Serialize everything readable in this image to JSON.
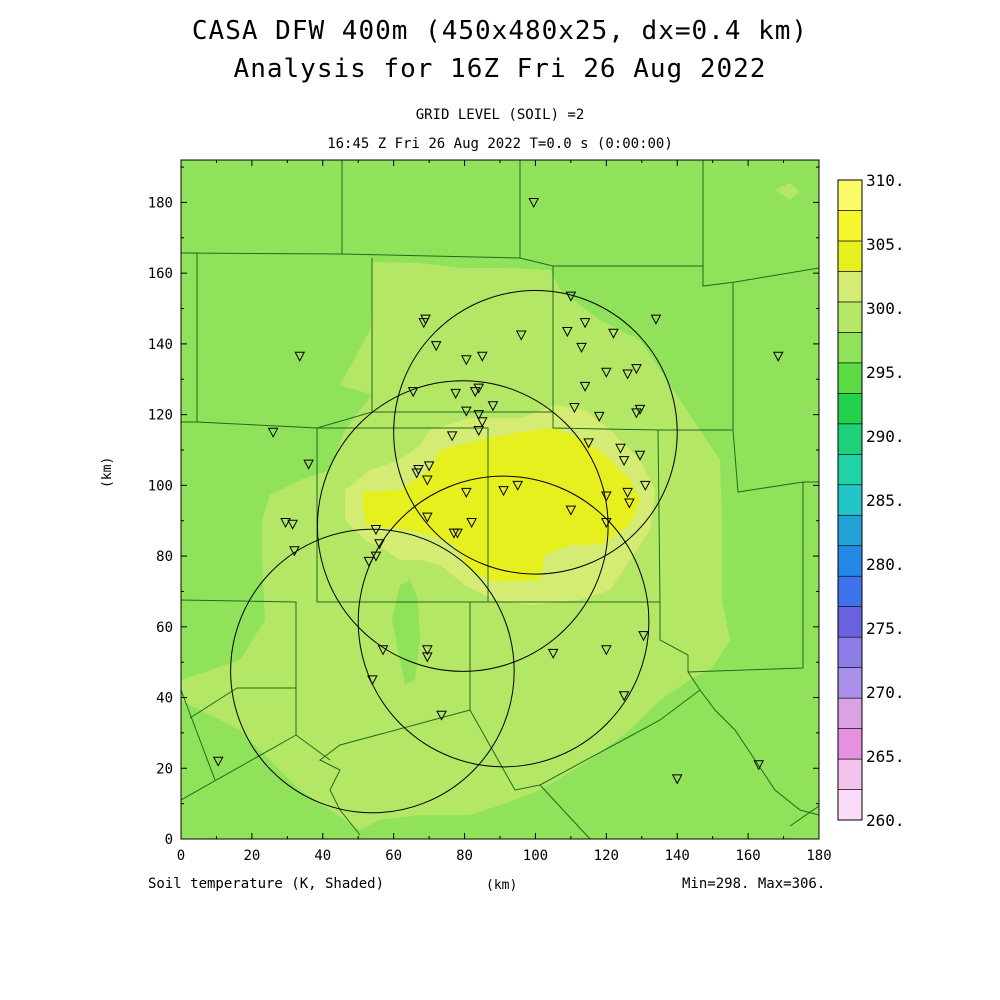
{
  "chart_data": {
    "type": "heatmap",
    "title": "CASA DFW 400m (450x480x25, dx=0.4 km)",
    "subtitle": "Analysis for 16Z Fri 26 Aug 2022",
    "level_label": "GRID LEVEL (SOIL) =2",
    "time_label": "16:45 Z Fri 26 Aug 2022   T=0.0 s (0:00:00)",
    "variable_label": "Soil temperature (K, Shaded)",
    "xlabel": "(km)",
    "ylabel": "(km)",
    "minmax_label": "Min=298. Max=306.",
    "xlim": [
      0,
      180
    ],
    "ylim": [
      0,
      192
    ],
    "x_ticks": [
      "0",
      "20",
      "40",
      "60",
      "80",
      "100",
      "120",
      "140",
      "160",
      "180"
    ],
    "y_ticks": [
      "0",
      "20",
      "40",
      "60",
      "80",
      "100",
      "120",
      "140",
      "160",
      "180"
    ],
    "colorbar": {
      "labels": [
        "260.",
        "265.",
        "270.",
        "275.",
        "280.",
        "285.",
        "290.",
        "295.",
        "300.",
        "305.",
        "310."
      ],
      "colors": [
        "#fbdcf8",
        "#f3c3ed",
        "#e591e1",
        "#d9a3e3",
        "#a890ea",
        "#8c7de6",
        "#6a63e0",
        "#3f73ec",
        "#2388e6",
        "#22a3d8",
        "#22c6c6",
        "#1fd3a4",
        "#1fd27a",
        "#22d24a",
        "#5bdc45",
        "#8fe25a",
        "#b4e766",
        "#d5ec74",
        "#e6f01e",
        "#f6f62e",
        "#fbfb6a"
      ]
    },
    "regions": [
      {
        "level": "298-300",
        "color": "#8fe25a"
      },
      {
        "level": "300-302",
        "color": "#b4e766"
      },
      {
        "level": "302-304",
        "color": "#d5ec74"
      },
      {
        "level": "304-306",
        "color": "#e6f01e"
      }
    ],
    "radar_rings": [
      {
        "cx": 100,
        "cy": 115,
        "r": 40
      },
      {
        "cx": 79.5,
        "cy": 88.5,
        "r": 41
      },
      {
        "cx": 91,
        "cy": 61.5,
        "r": 41
      },
      {
        "cx": 54,
        "cy": 47.5,
        "r": 40
      }
    ],
    "stations": [
      [
        99.5,
        180
      ],
      [
        110,
        153.5
      ],
      [
        69,
        147
      ],
      [
        68.5,
        146
      ],
      [
        114,
        146
      ],
      [
        109,
        143.5
      ],
      [
        122,
        143
      ],
      [
        134,
        147
      ],
      [
        96,
        142.5
      ],
      [
        33.5,
        136.5
      ],
      [
        168.5,
        136.5
      ],
      [
        72,
        139.5
      ],
      [
        113,
        139
      ],
      [
        80.5,
        135.5
      ],
      [
        85,
        136.5
      ],
      [
        120,
        132
      ],
      [
        126,
        131.5
      ],
      [
        128.5,
        133
      ],
      [
        65.5,
        126.5
      ],
      [
        84,
        127.5
      ],
      [
        83,
        126.5
      ],
      [
        77.5,
        126
      ],
      [
        114,
        128
      ],
      [
        80.5,
        121
      ],
      [
        88,
        122.5
      ],
      [
        84,
        120
      ],
      [
        85,
        118
      ],
      [
        111,
        122
      ],
      [
        118,
        119.5
      ],
      [
        128.5,
        120.5
      ],
      [
        129.5,
        121.5
      ],
      [
        26,
        115
      ],
      [
        84,
        115.5
      ],
      [
        76.5,
        114
      ],
      [
        115,
        112
      ],
      [
        124,
        110.5
      ],
      [
        129.5,
        108.5
      ],
      [
        125,
        107
      ],
      [
        36,
        106
      ],
      [
        70,
        105.5
      ],
      [
        67,
        104.5
      ],
      [
        66.5,
        103.5
      ],
      [
        69.5,
        101.5
      ],
      [
        131,
        100
      ],
      [
        95,
        100
      ],
      [
        91,
        98.5
      ],
      [
        80.5,
        98
      ],
      [
        126,
        98
      ],
      [
        120,
        97
      ],
      [
        126.5,
        95
      ],
      [
        110,
        93
      ],
      [
        69.5,
        91
      ],
      [
        120,
        89.5
      ],
      [
        82,
        89.5
      ],
      [
        29.5,
        89.5
      ],
      [
        31.5,
        89
      ],
      [
        55,
        87.5
      ],
      [
        77,
        86.5
      ],
      [
        78,
        86.5
      ],
      [
        32,
        81.5
      ],
      [
        55,
        80
      ],
      [
        53,
        78.5
      ],
      [
        56,
        83.5
      ],
      [
        130.5,
        57.5
      ],
      [
        120,
        53.5
      ],
      [
        105,
        52.5
      ],
      [
        57,
        53.5
      ],
      [
        69.5,
        53.5
      ],
      [
        69.5,
        51.5
      ],
      [
        125,
        40.5
      ],
      [
        54,
        45
      ],
      [
        73.5,
        35
      ],
      [
        10.5,
        22
      ],
      [
        163,
        21
      ],
      [
        140,
        17
      ]
    ]
  }
}
